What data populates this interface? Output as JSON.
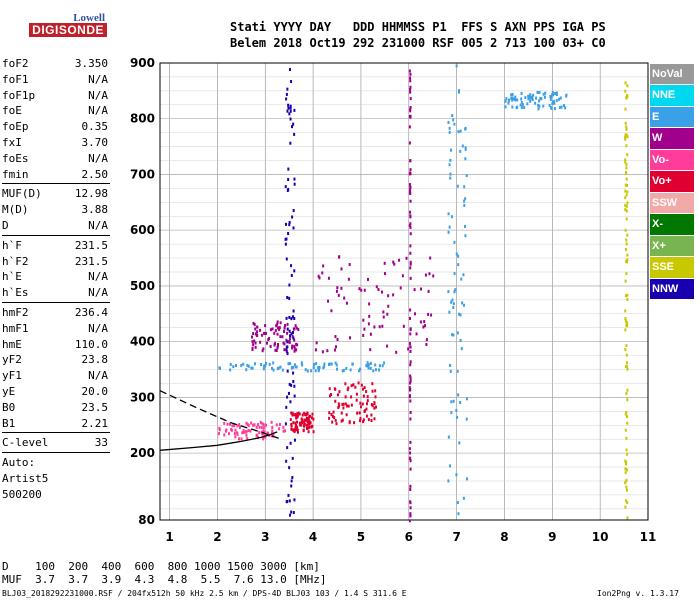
{
  "logo": {
    "line1": "Lowell",
    "line2": "DIGISONDE"
  },
  "header": {
    "line1": "Stati YYYY DAY   DDD HHMMSS P1  FFS S AXN PPS IGA PS",
    "line2": "Belem 2018 Oct19 292 231000 RSF 005 2 713 100 03+ C0"
  },
  "params": [
    {
      "name": "foF2",
      "value": "3.350"
    },
    {
      "name": "foF1",
      "value": "N/A"
    },
    {
      "name": "foF1p",
      "value": "N/A"
    },
    {
      "name": "foE",
      "value": "N/A"
    },
    {
      "name": "foEp",
      "value": "0.35"
    },
    {
      "name": "fxI",
      "value": "3.70"
    },
    {
      "name": "foEs",
      "value": "N/A"
    },
    {
      "name": "fmin",
      "value": "2.50",
      "sep": true
    },
    {
      "name": "MUF(D)",
      "value": "12.98"
    },
    {
      "name": "M(D)",
      "value": "3.88"
    },
    {
      "name": "D",
      "value": "N/A",
      "sep": true
    },
    {
      "name": "h`F",
      "value": "231.5"
    },
    {
      "name": "h`F2",
      "value": "231.5"
    },
    {
      "name": "h`E",
      "value": "N/A"
    },
    {
      "name": "h`Es",
      "value": "N/A",
      "sep": true
    },
    {
      "name": "hmF2",
      "value": "236.4"
    },
    {
      "name": "hmF1",
      "value": "N/A"
    },
    {
      "name": "hmE",
      "value": "110.0"
    },
    {
      "name": "yF2",
      "value": "23.8"
    },
    {
      "name": "yF1",
      "value": "N/A"
    },
    {
      "name": "yE",
      "value": "20.0"
    },
    {
      "name": "B0",
      "value": "23.5"
    },
    {
      "name": "B1",
      "value": "2.21",
      "sep": true
    },
    {
      "name": "C-level",
      "value": "33",
      "sep": true
    },
    {
      "name": "Auto:",
      "value": ""
    },
    {
      "name": "Artist5",
      "value": ""
    },
    {
      "name": "500200",
      "value": ""
    }
  ],
  "legend": [
    {
      "label": "NoVal",
      "color": "#999999"
    },
    {
      "label": "NNE",
      "color": "#00d8f0"
    },
    {
      "label": "E",
      "color": "#3aa0e8"
    },
    {
      "label": "W",
      "color": "#a0008c"
    },
    {
      "label": "Vo-",
      "color": "#ff3c9a"
    },
    {
      "label": "Vo+",
      "color": "#e00030"
    },
    {
      "label": "SSW",
      "color": "#f2aaa8"
    },
    {
      "label": "X-",
      "color": "#007800"
    },
    {
      "label": "X+",
      "color": "#78b450"
    },
    {
      "label": "SSE",
      "color": "#c8c800"
    },
    {
      "label": "NNW",
      "color": "#1800b0"
    }
  ],
  "footer": {
    "line1": "D    100  200  400  600  800 1000 1500 3000 [km]",
    "line2": "MUF  3.7  3.7  3.9  4.3  4.8  5.5  7.6 13.0 [MHz]",
    "line3": "BLJ03_2018292231000.RSF / 204fx512h 50 kHz 2.5 km / DPS-4D BLJ03 103 / 1.4 S 311.6 E",
    "version": "Ion2Png v. 1.3.17"
  },
  "chart_data": {
    "type": "scatter",
    "xlabel": "",
    "ylabel": "",
    "xlim": [
      0.8,
      11.0
    ],
    "ylim": [
      80,
      900
    ],
    "xticks": [
      1,
      2,
      3,
      4,
      5,
      6,
      7,
      8,
      9,
      10,
      11
    ],
    "yticks": [
      80,
      200,
      300,
      400,
      500,
      600,
      700,
      800,
      900
    ],
    "grid": true,
    "traces": [
      {
        "name": "O-trace F2 (solid)",
        "x": [
          0.8,
          1.5,
          2.0,
          2.5,
          2.9,
          3.1,
          3.25
        ],
        "y": [
          205,
          210,
          214,
          221,
          228,
          233,
          238
        ]
      },
      {
        "name": "X-trace F2 (dashed)",
        "x": [
          0.8,
          1.2,
          1.6,
          2.0,
          2.3,
          2.6,
          2.9,
          3.1,
          3.3
        ],
        "y": [
          312,
          296,
          280,
          265,
          254,
          246,
          238,
          232,
          226
        ]
      }
    ],
    "echo_clusters": [
      {
        "color": "#ff3c9a",
        "freq": [
          2.0,
          3.4
        ],
        "height": [
          228,
          258
        ]
      },
      {
        "color": "#e00030",
        "freq": [
          3.5,
          4.0
        ],
        "height": [
          240,
          275
        ]
      },
      {
        "color": "#e00030",
        "freq": [
          4.3,
          5.3
        ],
        "height": [
          255,
          330
        ]
      },
      {
        "color": "#3aa0e8",
        "freq": [
          2.0,
          5.5
        ],
        "height": [
          350,
          365
        ]
      },
      {
        "color": "#a0008c",
        "freq": [
          2.7,
          3.7
        ],
        "height": [
          385,
          440
        ]
      },
      {
        "color": "#a0008c",
        "freq": [
          4.0,
          6.5
        ],
        "height": [
          380,
          560
        ]
      },
      {
        "color": "#1800b0",
        "freq": [
          3.4,
          3.6
        ],
        "height": [
          90,
          900
        ]
      },
      {
        "color": "#a0008c",
        "freq": [
          6.0,
          6.02
        ],
        "height": [
          80,
          900
        ]
      },
      {
        "color": "#3aa0e8",
        "freq": [
          6.8,
          7.2
        ],
        "height": [
          80,
          900
        ]
      },
      {
        "color": "#3aa0e8",
        "freq": [
          8.0,
          9.3
        ],
        "height": [
          820,
          850
        ]
      },
      {
        "color": "#c8c800",
        "freq": [
          10.5,
          10.55
        ],
        "height": [
          80,
          880
        ]
      }
    ]
  }
}
